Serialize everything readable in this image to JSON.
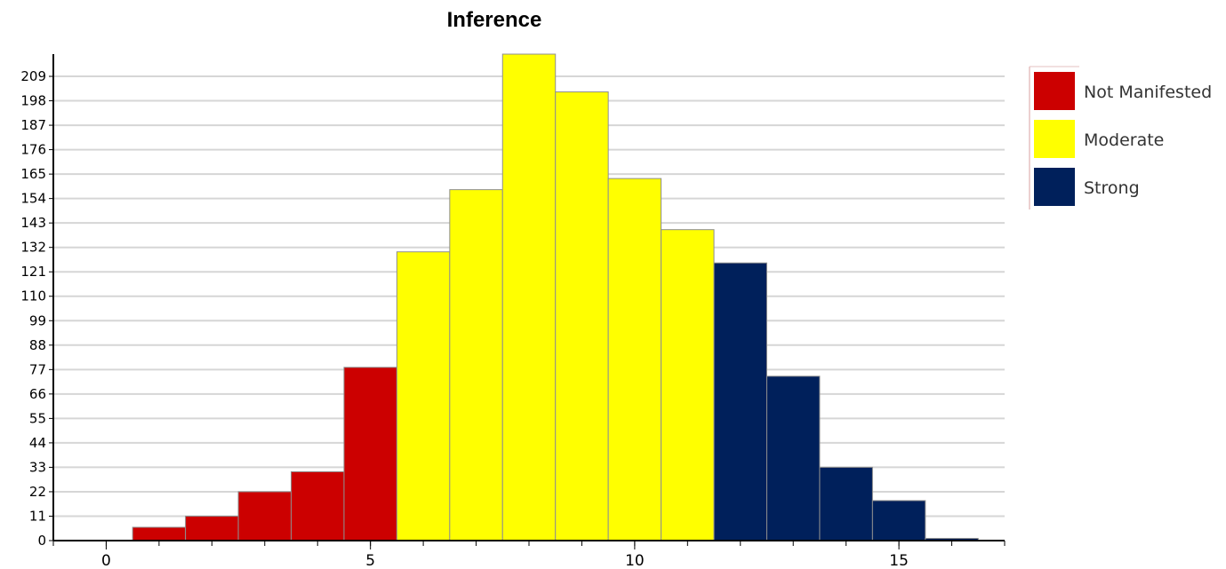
{
  "chart_data": {
    "type": "bar",
    "title": "Inference",
    "xlabel": "",
    "ylabel": "",
    "x_ticks": [
      0,
      5,
      10,
      15
    ],
    "y_ticks": [
      0,
      11,
      22,
      33,
      44,
      55,
      66,
      77,
      88,
      99,
      110,
      121,
      132,
      143,
      154,
      165,
      176,
      187,
      198,
      209
    ],
    "xlim": [
      -1,
      17
    ],
    "ylim": [
      0,
      219
    ],
    "grid": true,
    "legend_position": "right",
    "series": [
      {
        "name": "Not Manifested",
        "color": "#cc0000",
        "x": [
          0,
          1,
          2,
          3,
          4,
          5
        ],
        "values": [
          0,
          6,
          11,
          22,
          31,
          78
        ]
      },
      {
        "name": "Moderate",
        "color": "#ffff00",
        "x": [
          6,
          7,
          8,
          9,
          10,
          11
        ],
        "values": [
          130,
          158,
          219,
          202,
          163,
          140
        ]
      },
      {
        "name": "Strong",
        "color": "#00205b",
        "x": [
          12,
          13,
          14,
          15,
          16
        ],
        "values": [
          125,
          74,
          33,
          18,
          1
        ]
      }
    ]
  }
}
